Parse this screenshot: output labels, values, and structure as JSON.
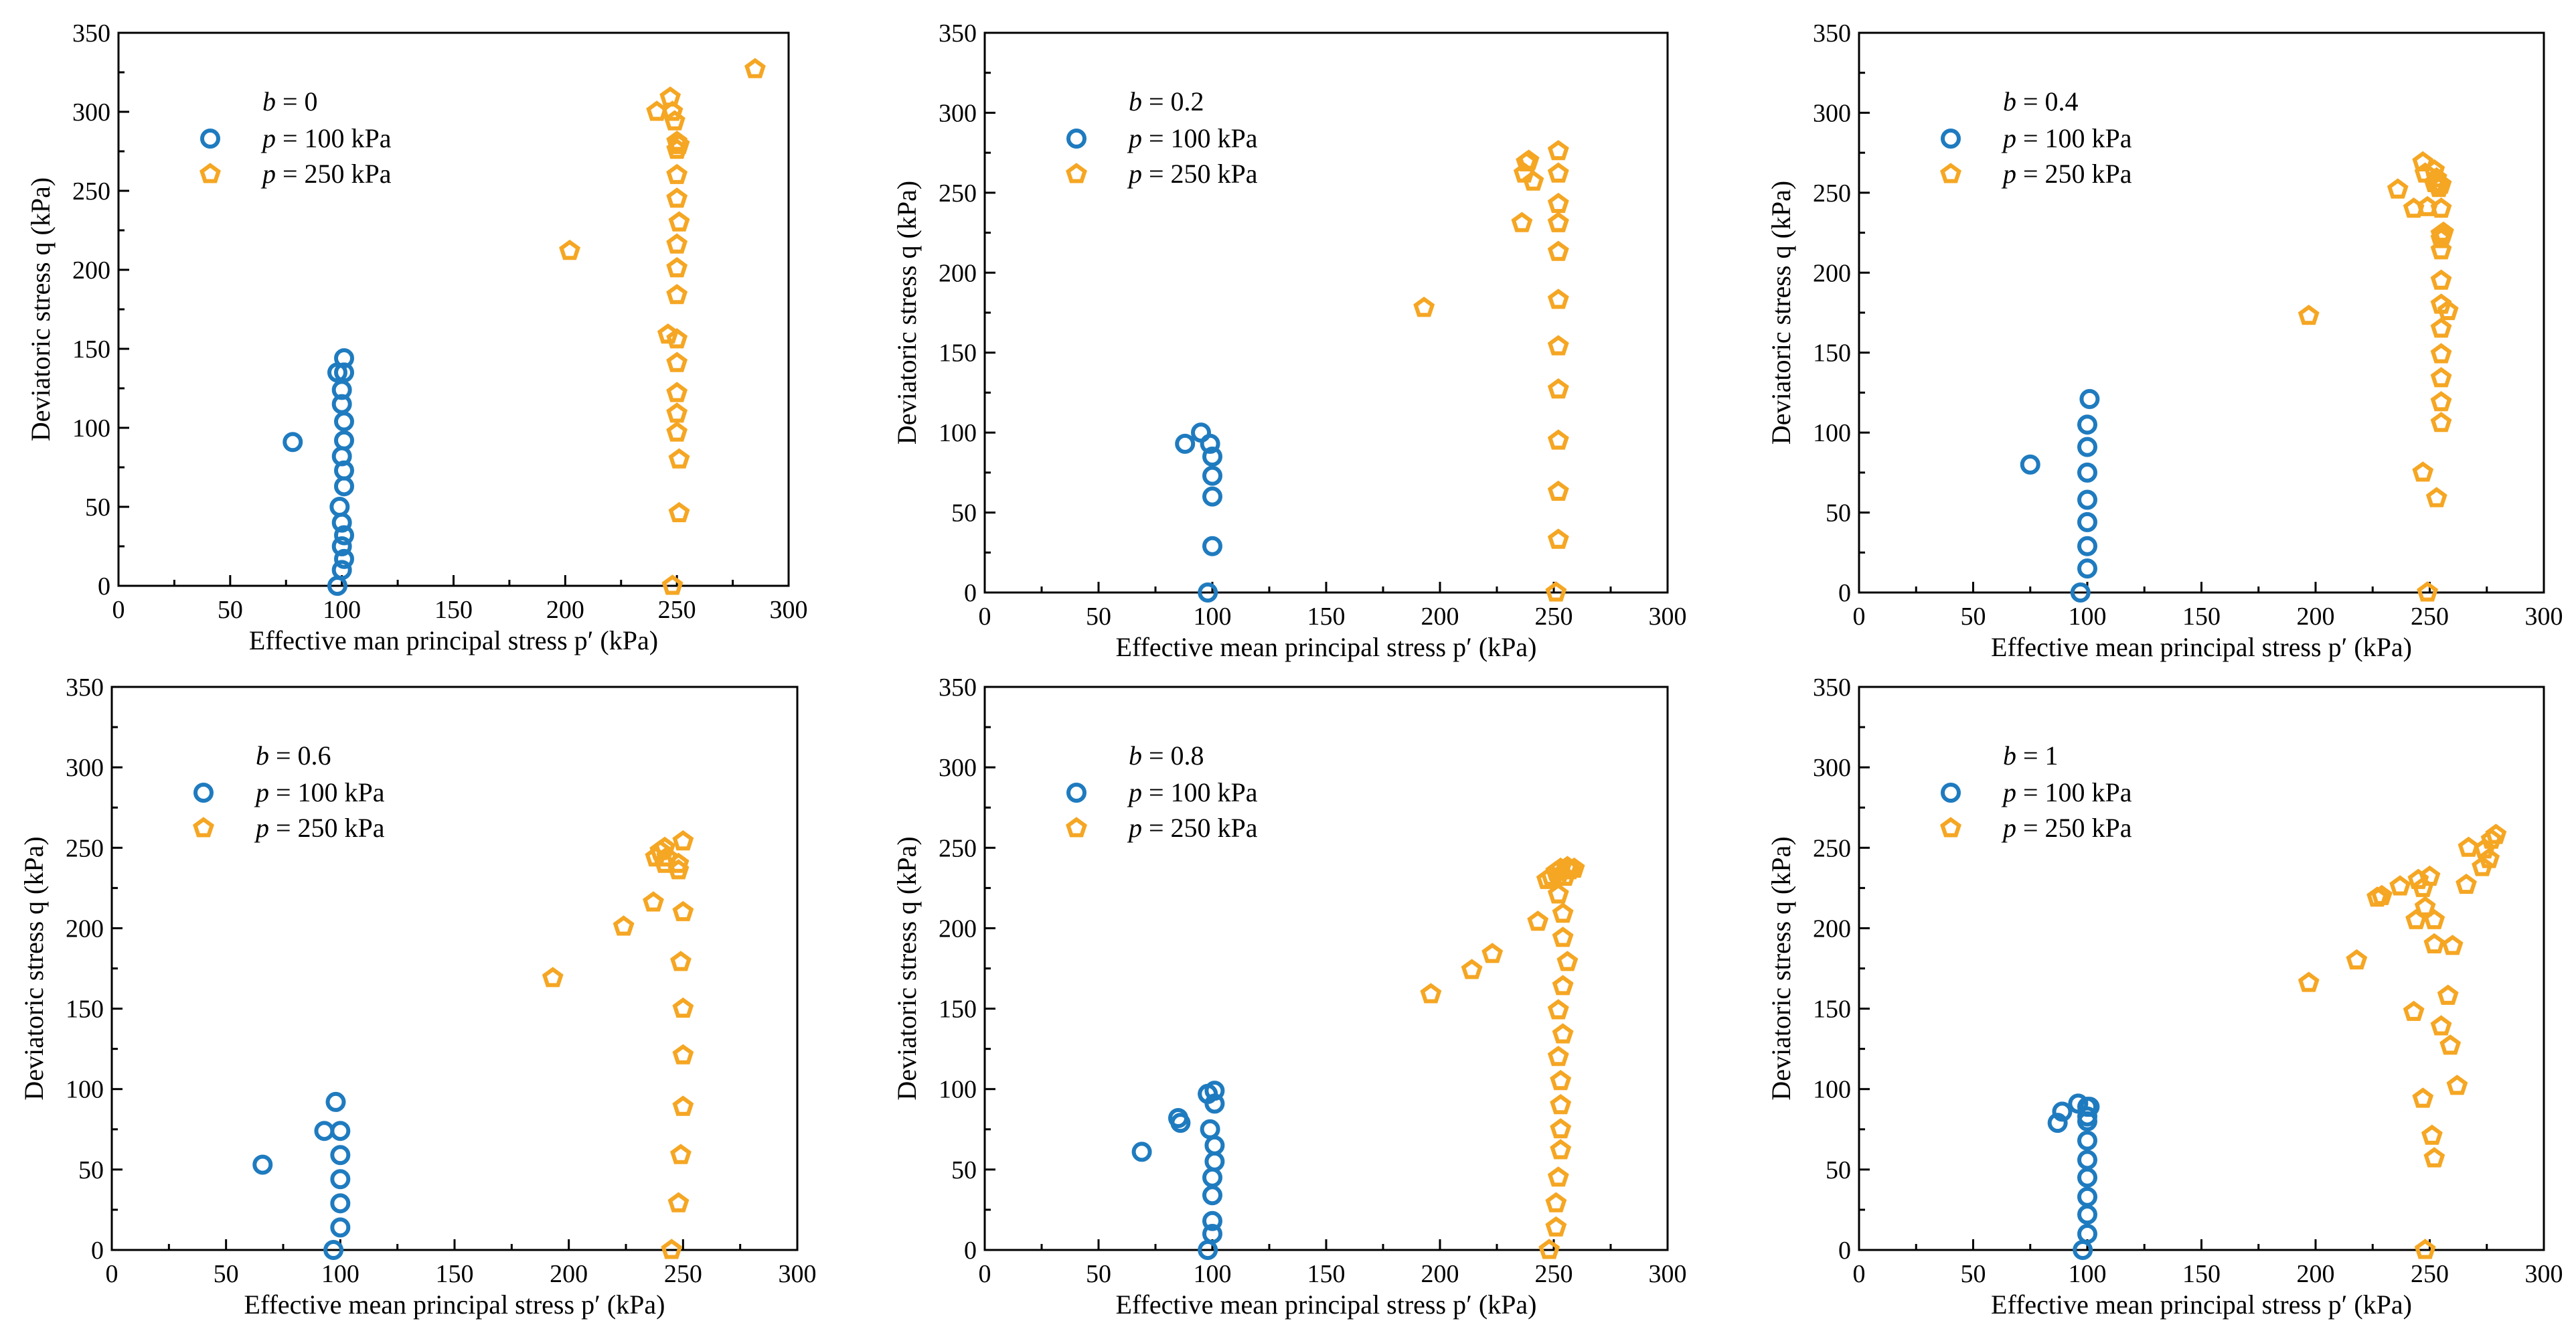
{
  "meta": {
    "colors": {
      "p100": "#1f7bbf",
      "p250": "#f5a623",
      "axis": "#000000",
      "background": "#ffffff"
    },
    "markers": {
      "p100": "circle",
      "p250": "pentagon"
    }
  },
  "chart_data": [
    {
      "type": "scatter",
      "legend_title": {
        "var": "b",
        "value": "0"
      },
      "xlabel": "Effective man principal stress p′ (kPa)",
      "ylabel": "Deviatoric stress q (kPa)",
      "xlim": [
        0,
        300
      ],
      "ylim": [
        0,
        350
      ],
      "xticks": [
        "0",
        "50",
        "100",
        "150",
        "200",
        "250",
        "300"
      ],
      "yticks": [
        "0",
        "50",
        "100",
        "150",
        "200",
        "250",
        "300",
        "350"
      ],
      "grid": false,
      "legend_position": "top-left",
      "series": [
        {
          "name": "p = 100 kPa",
          "label_var": "p",
          "label_rest": " = 100 kPa",
          "marker": "circle",
          "x": [
            98,
            100,
            101,
            100,
            101,
            100,
            99,
            101,
            101,
            100,
            101,
            101,
            100,
            100,
            101,
            98,
            101,
            78
          ],
          "y": [
            0,
            10,
            17,
            25,
            32,
            40,
            50,
            63,
            73,
            82,
            92,
            104,
            115,
            124,
            135,
            135,
            144,
            91
          ]
        },
        {
          "name": "p = 250 kPa",
          "label_var": "p",
          "label_rest": " = 250 kPa",
          "marker": "pentagon",
          "x": [
            248,
            251,
            251,
            250,
            250,
            250,
            250,
            250,
            246,
            250,
            250,
            250,
            251,
            250,
            250,
            250,
            250,
            251,
            249,
            248,
            247,
            241,
            202,
            285
          ],
          "y": [
            0,
            46,
            80,
            97,
            109,
            122,
            141,
            156,
            159,
            184,
            201,
            216,
            230,
            245,
            260,
            276,
            281,
            279,
            294,
            300,
            309,
            300,
            212,
            327
          ]
        }
      ]
    },
    {
      "type": "scatter",
      "legend_title": {
        "var": "b",
        "value": "0.2"
      },
      "xlabel": "Effective mean principal stress p′ (kPa)",
      "ylabel": "Deviatoric stress q (kPa)",
      "xlim": [
        0,
        300
      ],
      "ylim": [
        0,
        350
      ],
      "xticks": [
        "0",
        "50",
        "100",
        "150",
        "200",
        "250",
        "300"
      ],
      "yticks": [
        "0",
        "50",
        "100",
        "150",
        "200",
        "250",
        "300",
        "350"
      ],
      "grid": false,
      "legend_position": "top-left",
      "series": [
        {
          "name": "p = 100 kPa",
          "label_var": "p",
          "label_rest": " = 100 kPa",
          "marker": "circle",
          "x": [
            98,
            100,
            100,
            100,
            100,
            99,
            95,
            88
          ],
          "y": [
            0,
            29,
            60,
            73,
            85,
            93,
            100,
            93
          ]
        },
        {
          "name": "p = 250 kPa",
          "label_var": "p",
          "label_rest": " = 250 kPa",
          "marker": "pentagon",
          "x": [
            251,
            252,
            252,
            252,
            252,
            252,
            252,
            252,
            252,
            252,
            252,
            252,
            252,
            236,
            241,
            238,
            239,
            237,
            193
          ],
          "y": [
            0,
            33,
            63,
            95,
            127,
            154,
            183,
            213,
            243,
            262,
            276,
            231,
            231,
            231,
            257,
            269,
            270,
            262,
            178
          ]
        }
      ]
    },
    {
      "type": "scatter",
      "legend_title": {
        "var": "b",
        "value": "0.4"
      },
      "xlabel": "Effective mean principal stress p′ (kPa)",
      "ylabel": "Deviatoric stress q (kPa)",
      "xlim": [
        0,
        300
      ],
      "ylim": [
        0,
        350
      ],
      "xticks": [
        "0",
        "50",
        "100",
        "150",
        "200",
        "250",
        "300"
      ],
      "yticks": [
        "0",
        "50",
        "100",
        "150",
        "200",
        "250",
        "300",
        "350"
      ],
      "grid": false,
      "legend_position": "top-left",
      "series": [
        {
          "name": "p = 100 kPa",
          "label_var": "p",
          "label_rest": " = 100 kPa",
          "marker": "circle",
          "x": [
            97,
            100,
            100,
            100,
            100,
            100,
            100,
            100,
            101,
            75
          ],
          "y": [
            0,
            15,
            29,
            44,
            58,
            75,
            91,
            105,
            121,
            80
          ]
        },
        {
          "name": "p = 250 kPa",
          "label_var": "p",
          "label_rest": " = 250 kPa",
          "marker": "pentagon",
          "x": [
            249,
            247,
            253,
            255,
            255,
            255,
            255,
            255,
            255,
            258,
            255,
            255,
            255,
            256,
            255,
            255,
            255,
            254,
            253,
            253,
            252,
            247,
            248,
            252,
            249,
            243,
            236,
            197
          ],
          "y": [
            0,
            75,
            59,
            106,
            119,
            134,
            149,
            165,
            180,
            176,
            195,
            214,
            221,
            225,
            224,
            240,
            255,
            253,
            256,
            259,
            264,
            269,
            262,
            256,
            241,
            240,
            252,
            173
          ]
        }
      ]
    },
    {
      "type": "scatter",
      "legend_title": {
        "var": "b",
        "value": "0.6"
      },
      "xlabel": "Effective mean principal stress p′ (kPa)",
      "ylabel": "Deviatoric stress q (kPa)",
      "xlim": [
        0,
        300
      ],
      "ylim": [
        0,
        350
      ],
      "xticks": [
        "0",
        "50",
        "100",
        "150",
        "200",
        "250",
        "300"
      ],
      "yticks": [
        "0",
        "50",
        "100",
        "150",
        "200",
        "250",
        "300",
        "350"
      ],
      "grid": false,
      "legend_position": "top-left",
      "series": [
        {
          "name": "p = 100 kPa",
          "label_var": "p",
          "label_rest": " = 100 kPa",
          "marker": "circle",
          "x": [
            97,
            100,
            100,
            100,
            100,
            100,
            93,
            98,
            66
          ],
          "y": [
            0,
            14,
            29,
            44,
            59,
            74,
            74,
            92,
            53
          ]
        },
        {
          "name": "p = 250 kPa",
          "label_var": "p",
          "label_rest": " = 250 kPa",
          "marker": "pentagon",
          "x": [
            245,
            248,
            249,
            250,
            250,
            250,
            249,
            250,
            248,
            248,
            250,
            242,
            238,
            242,
            240,
            243,
            237,
            224,
            193
          ],
          "y": [
            0,
            29,
            59,
            89,
            121,
            150,
            179,
            210,
            236,
            240,
            254,
            240,
            244,
            250,
            248,
            244,
            216,
            201,
            169
          ]
        }
      ]
    },
    {
      "type": "scatter",
      "legend_title": {
        "var": "b",
        "value": "0.8"
      },
      "xlabel": "Effective mean principal stress p′ (kPa)",
      "ylabel": "Deviatoric stress q (kPa)",
      "xlim": [
        0,
        300
      ],
      "ylim": [
        0,
        350
      ],
      "xticks": [
        "0",
        "50",
        "100",
        "150",
        "200",
        "250",
        "300"
      ],
      "yticks": [
        "0",
        "50",
        "100",
        "150",
        "200",
        "250",
        "300",
        "350"
      ],
      "grid": false,
      "legend_position": "top-left",
      "series": [
        {
          "name": "p = 100 kPa",
          "label_var": "p",
          "label_rest": " = 100 kPa",
          "marker": "circle",
          "x": [
            98,
            100,
            100,
            100,
            100,
            101,
            101,
            101,
            99,
            98,
            98,
            101,
            85,
            86,
            69
          ],
          "y": [
            0,
            10,
            18,
            34,
            45,
            55,
            65,
            91,
            75,
            97,
            97,
            99,
            82,
            79,
            61
          ]
        },
        {
          "name": "p = 250 kPa",
          "label_var": "p",
          "label_rest": " = 250 kPa",
          "marker": "pentagon",
          "x": [
            248,
            251,
            251,
            252,
            253,
            253,
            253,
            253,
            252,
            254,
            252,
            254,
            256,
            254,
            254,
            252,
            252,
            255,
            257,
            259,
            256,
            253,
            251,
            249,
            247,
            243,
            223,
            214,
            196
          ],
          "y": [
            0,
            14,
            29,
            45,
            62,
            75,
            90,
            105,
            120,
            134,
            149,
            164,
            179,
            194,
            209,
            221,
            232,
            232,
            236,
            237,
            238,
            237,
            235,
            232,
            230,
            204,
            184,
            174,
            159
          ]
        }
      ]
    },
    {
      "type": "scatter",
      "legend_title": {
        "var": "b",
        "value": "1"
      },
      "xlabel": "Effective mean principal stress p′ (kPa)",
      "ylabel": "Deviatoric stress q (kPa)",
      "xlim": [
        0,
        300
      ],
      "ylim": [
        0,
        350
      ],
      "xticks": [
        "0",
        "50",
        "100",
        "150",
        "200",
        "250",
        "300"
      ],
      "yticks": [
        "0",
        "50",
        "100",
        "150",
        "200",
        "250",
        "300",
        "350"
      ],
      "grid": false,
      "legend_position": "top-left",
      "series": [
        {
          "name": "p = 100 kPa",
          "label_var": "p",
          "label_rest": " = 100 kPa",
          "marker": "circle",
          "x": [
            98,
            100,
            100,
            100,
            100,
            100,
            100,
            100,
            100,
            100,
            96,
            101,
            89,
            87
          ],
          "y": [
            0,
            10,
            22,
            33,
            45,
            56,
            68,
            80,
            83,
            89,
            91,
            89,
            86,
            79
          ]
        },
        {
          "name": "p = 250 kPa",
          "label_var": "p",
          "label_rest": " = 250 kPa",
          "marker": "pentagon",
          "x": [
            248,
            252,
            251,
            247,
            262,
            259,
            255,
            258,
            243,
            252,
            260,
            252,
            244,
            248,
            245,
            250,
            247,
            237,
            227,
            229,
            218,
            197,
            266,
            267,
            273,
            276,
            274,
            277,
            279
          ],
          "y": [
            0,
            57,
            71,
            94,
            102,
            127,
            139,
            158,
            148,
            190,
            189,
            205,
            205,
            213,
            230,
            232,
            225,
            226,
            219,
            220,
            180,
            166,
            227,
            250,
            238,
            243,
            249,
            255,
            258
          ]
        }
      ]
    }
  ]
}
